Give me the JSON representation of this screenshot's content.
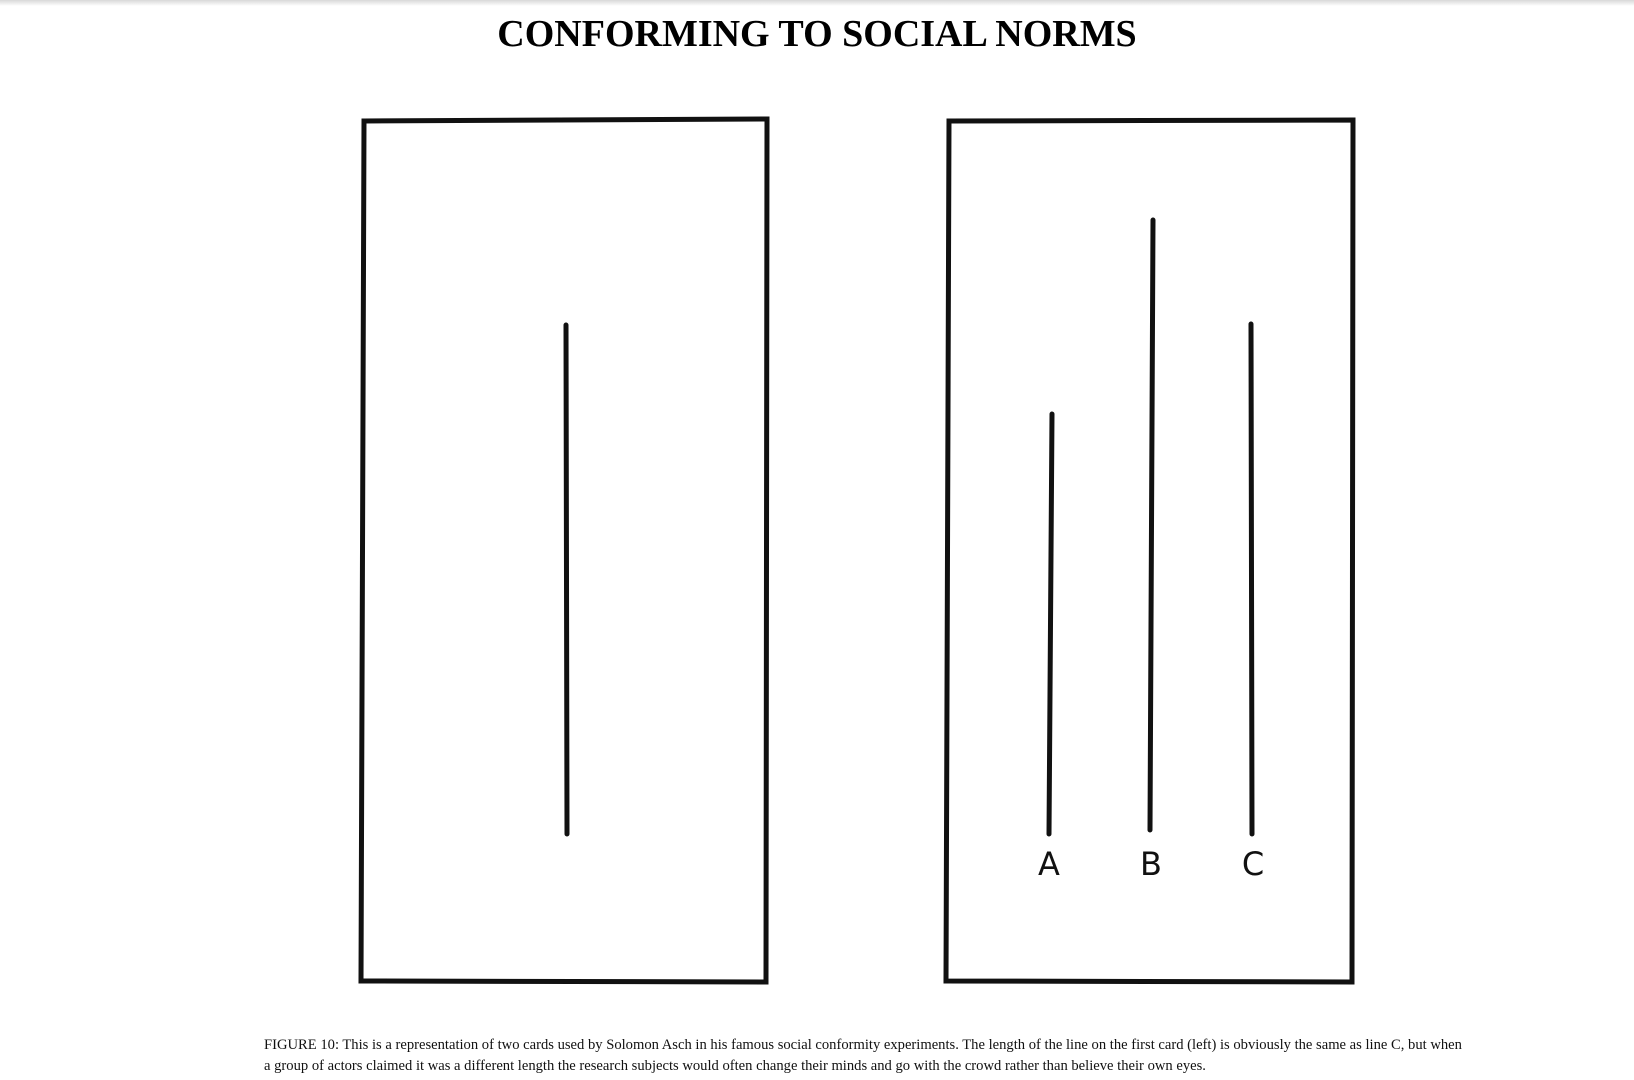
{
  "title": "CONFORMING TO SOCIAL NORMS",
  "figure": {
    "left_card": {
      "lines": 1
    },
    "right_card": {
      "labels": [
        "A",
        "B",
        "C"
      ]
    }
  },
  "caption": "FIGURE 10: This is a representation of two cards used by Solomon Asch in his famous social conformity experiments. The length of the line on the first card (left) is obviously the same as line C, but when a group of actors claimed it was a different length the research subjects would often change their minds and go with the crowd rather than believe their own eyes."
}
